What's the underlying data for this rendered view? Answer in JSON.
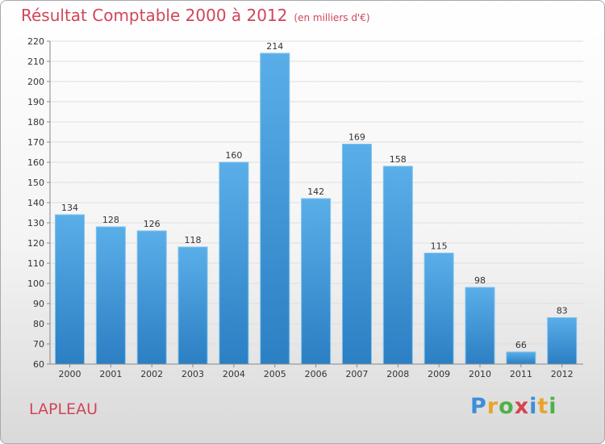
{
  "title": "Résultat Comptable 2000 à 2012",
  "unit": "(en milliers d'€)",
  "commune": "LAPLEAU",
  "brand": "Proxiti",
  "colors": {
    "title": "#d0455a",
    "bar_top": "#5aaee8",
    "bar_bottom": "#2b7fc3",
    "bar_border": "#7ec2ef"
  },
  "chart_data": {
    "type": "bar",
    "title": "Résultat Comptable 2000 à 2012",
    "xlabel": "",
    "ylabel": "",
    "categories": [
      "2000",
      "2001",
      "2002",
      "2003",
      "2004",
      "2005",
      "2006",
      "2007",
      "2008",
      "2009",
      "2010",
      "2011",
      "2012"
    ],
    "values": [
      134,
      128,
      126,
      118,
      160,
      214,
      142,
      169,
      158,
      115,
      98,
      66,
      83
    ],
    "ylim": [
      60,
      220
    ],
    "yticks": [
      60,
      70,
      80,
      90,
      100,
      110,
      120,
      130,
      140,
      150,
      160,
      170,
      180,
      190,
      200,
      210,
      220
    ],
    "grid": true,
    "legend": "none"
  }
}
